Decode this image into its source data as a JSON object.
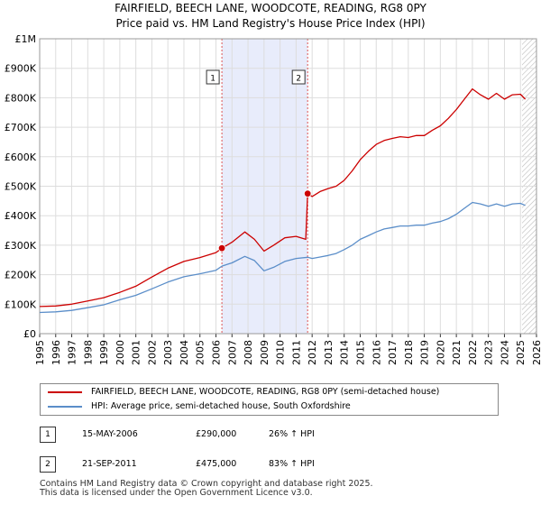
{
  "chart_data": {
    "type": "line",
    "title": "FAIRFIELD, BEECH LANE, WOODCOTE, READING, RG8 0PY",
    "subtitle": "Price paid vs. HM Land Registry's House Price Index (HPI)",
    "xlim": [
      1995,
      2026
    ],
    "ylim": [
      0,
      1000000
    ],
    "x_ticks": [
      "1995",
      "1996",
      "1997",
      "1998",
      "1999",
      "2000",
      "2001",
      "2002",
      "2003",
      "2004",
      "2005",
      "2006",
      "2007",
      "2008",
      "2009",
      "2010",
      "2011",
      "2012",
      "2013",
      "2014",
      "2015",
      "2016",
      "2017",
      "2018",
      "2019",
      "2020",
      "2021",
      "2022",
      "2023",
      "2024",
      "2025",
      "2026"
    ],
    "y_ticks": [
      {
        "value": 0,
        "label": "£0"
      },
      {
        "value": 100000,
        "label": "£100K"
      },
      {
        "value": 200000,
        "label": "£200K"
      },
      {
        "value": 300000,
        "label": "£300K"
      },
      {
        "value": 400000,
        "label": "£400K"
      },
      {
        "value": 500000,
        "label": "£500K"
      },
      {
        "value": 600000,
        "label": "£600K"
      },
      {
        "value": 700000,
        "label": "£700K"
      },
      {
        "value": 800000,
        "label": "£800K"
      },
      {
        "value": 900000,
        "label": "£900K"
      },
      {
        "value": 1000000,
        "label": "£1M"
      }
    ],
    "shaded_region": {
      "from": 2006.37,
      "to": 2011.72,
      "color": "#e8ecfb"
    },
    "future_hatch_from": 2025.1,
    "series": [
      {
        "name": "FAIRFIELD, BEECH LANE, WOODCOTE, READING, RG8 0PY (semi-detached house)",
        "color": "#cc0000",
        "points": [
          [
            1995.0,
            92000
          ],
          [
            1996.0,
            94000
          ],
          [
            1997.0,
            100000
          ],
          [
            1998.0,
            111000
          ],
          [
            1999.0,
            122000
          ],
          [
            2000.0,
            140000
          ],
          [
            2001.0,
            161000
          ],
          [
            2002.0,
            192000
          ],
          [
            2003.0,
            222000
          ],
          [
            2004.0,
            245000
          ],
          [
            2005.0,
            258000
          ],
          [
            2006.0,
            275000
          ],
          [
            2006.37,
            290000
          ],
          [
            2007.0,
            310000
          ],
          [
            2007.8,
            345000
          ],
          [
            2008.4,
            320000
          ],
          [
            2009.0,
            280000
          ],
          [
            2009.6,
            300000
          ],
          [
            2010.3,
            325000
          ],
          [
            2011.0,
            330000
          ],
          [
            2011.6,
            320000
          ],
          [
            2011.72,
            475000
          ],
          [
            2012.0,
            465000
          ],
          [
            2012.5,
            482000
          ],
          [
            2013.0,
            492000
          ],
          [
            2013.5,
            500000
          ],
          [
            2014.0,
            520000
          ],
          [
            2014.5,
            552000
          ],
          [
            2015.0,
            590000
          ],
          [
            2015.5,
            618000
          ],
          [
            2016.0,
            642000
          ],
          [
            2016.5,
            655000
          ],
          [
            2017.0,
            662000
          ],
          [
            2017.5,
            668000
          ],
          [
            2018.0,
            665000
          ],
          [
            2018.5,
            672000
          ],
          [
            2019.0,
            672000
          ],
          [
            2019.5,
            690000
          ],
          [
            2020.0,
            705000
          ],
          [
            2020.5,
            730000
          ],
          [
            2021.0,
            760000
          ],
          [
            2021.5,
            795000
          ],
          [
            2022.0,
            830000
          ],
          [
            2022.5,
            810000
          ],
          [
            2023.0,
            795000
          ],
          [
            2023.5,
            815000
          ],
          [
            2024.0,
            795000
          ],
          [
            2024.5,
            810000
          ],
          [
            2025.0,
            812000
          ],
          [
            2025.3,
            795000
          ]
        ]
      },
      {
        "name": "HPI: Average price, semi-detached house, South Oxfordshire",
        "color": "#5b8ec9",
        "points": [
          [
            1995.0,
            72000
          ],
          [
            1996.0,
            74000
          ],
          [
            1997.0,
            79000
          ],
          [
            1998.0,
            88000
          ],
          [
            1999.0,
            98000
          ],
          [
            2000.0,
            115000
          ],
          [
            2001.0,
            130000
          ],
          [
            2002.0,
            152000
          ],
          [
            2003.0,
            175000
          ],
          [
            2004.0,
            193000
          ],
          [
            2005.0,
            203000
          ],
          [
            2006.0,
            215000
          ],
          [
            2006.37,
            229000
          ],
          [
            2007.0,
            240000
          ],
          [
            2007.8,
            262000
          ],
          [
            2008.4,
            248000
          ],
          [
            2009.0,
            213000
          ],
          [
            2009.6,
            225000
          ],
          [
            2010.3,
            245000
          ],
          [
            2011.0,
            255000
          ],
          [
            2011.72,
            259000
          ],
          [
            2012.0,
            255000
          ],
          [
            2012.5,
            260000
          ],
          [
            2013.0,
            265000
          ],
          [
            2013.5,
            272000
          ],
          [
            2014.0,
            285000
          ],
          [
            2014.5,
            300000
          ],
          [
            2015.0,
            320000
          ],
          [
            2015.5,
            332000
          ],
          [
            2016.0,
            345000
          ],
          [
            2016.5,
            355000
          ],
          [
            2017.0,
            360000
          ],
          [
            2017.5,
            365000
          ],
          [
            2018.0,
            365000
          ],
          [
            2018.5,
            368000
          ],
          [
            2019.0,
            368000
          ],
          [
            2019.5,
            375000
          ],
          [
            2020.0,
            380000
          ],
          [
            2020.5,
            390000
          ],
          [
            2021.0,
            405000
          ],
          [
            2021.5,
            425000
          ],
          [
            2022.0,
            445000
          ],
          [
            2022.5,
            440000
          ],
          [
            2023.0,
            432000
          ],
          [
            2023.5,
            440000
          ],
          [
            2024.0,
            432000
          ],
          [
            2024.5,
            440000
          ],
          [
            2025.0,
            442000
          ],
          [
            2025.3,
            435000
          ]
        ]
      }
    ],
    "markers": [
      {
        "id": "1",
        "x": 2006.37,
        "y": 290000,
        "label": "1"
      },
      {
        "id": "2",
        "x": 2011.72,
        "y": 475000,
        "label": "2"
      }
    ]
  },
  "legend": {
    "series1_label": "FAIRFIELD, BEECH LANE, WOODCOTE, READING, RG8 0PY (semi-detached house)",
    "series2_label": "HPI: Average price, semi-detached house, South Oxfordshire"
  },
  "transactions": [
    {
      "num": "1",
      "date": "15-MAY-2006",
      "price": "£290,000",
      "hpi": "26% ↑ HPI"
    },
    {
      "num": "2",
      "date": "21-SEP-2011",
      "price": "£475,000",
      "hpi": "83% ↑ HPI"
    }
  ],
  "footer": {
    "line1": "Contains HM Land Registry data © Crown copyright and database right 2025.",
    "line2": "This data is licensed under the Open Government Licence v3.0."
  }
}
